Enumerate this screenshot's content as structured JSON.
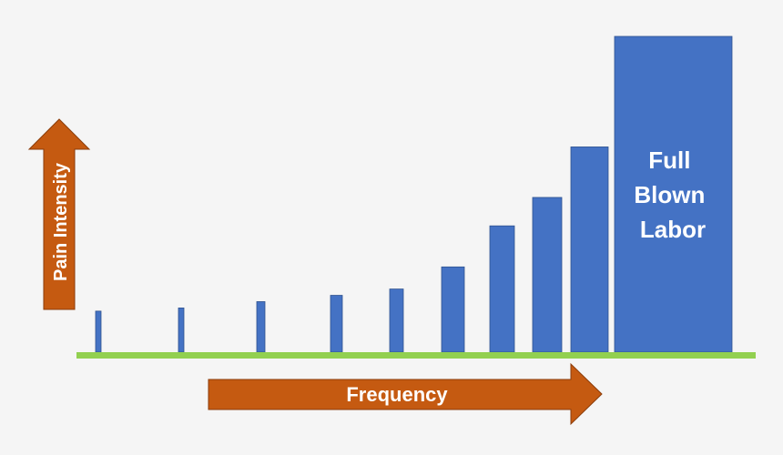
{
  "diagram": {
    "bar_color": "#4472c4",
    "arrow_color": "#c55a11",
    "baseline_color": "#92d050",
    "background_color": "#f5f5f5",
    "bars": [
      {
        "relative_height": 0.13
      },
      {
        "relative_height": 0.14
      },
      {
        "relative_height": 0.16
      },
      {
        "relative_height": 0.18
      },
      {
        "relative_height": 0.2
      },
      {
        "relative_height": 0.27
      },
      {
        "relative_height": 0.4
      },
      {
        "relative_height": 0.49
      },
      {
        "relative_height": 0.65
      },
      {
        "relative_height": 1.0
      }
    ],
    "labels": {
      "vertical_arrow": "Pain Intensity",
      "horizontal_arrow": "Frequency",
      "big_bar_lines": [
        "Full",
        "Blown",
        "Labor"
      ]
    }
  }
}
